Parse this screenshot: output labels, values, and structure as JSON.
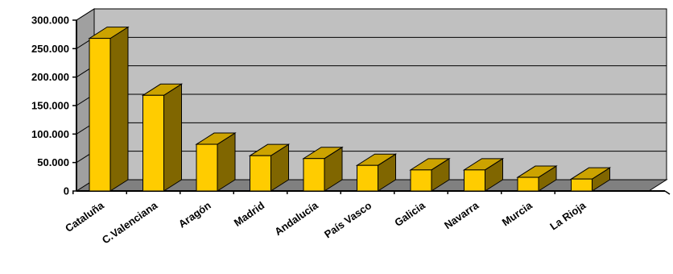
{
  "chart_data": {
    "type": "bar",
    "title": "",
    "xlabel": "",
    "ylabel": "",
    "categories": [
      "Cataluña",
      "C.Valenciana",
      "Aragón",
      "Madrid",
      "Andalucía",
      "País Vasco",
      "Galicia",
      "Navarra",
      "Murcia",
      "La Rioja"
    ],
    "values": [
      268000,
      168000,
      82000,
      62000,
      57000,
      45000,
      37000,
      37000,
      24000,
      21000
    ],
    "ylim": [
      0,
      300000
    ],
    "yticks": [
      0,
      50000,
      100000,
      150000,
      200000,
      250000,
      300000
    ],
    "ytick_labels": [
      "0",
      "50.000",
      "100.000",
      "150.000",
      "200.000",
      "250.000",
      "300.000"
    ],
    "grid": true,
    "legend": "none",
    "colors": {
      "bar_front": "#FFCC00",
      "bar_side": "#806600",
      "bar_top": "#CCA300",
      "back_wall": "#C0C0C0",
      "side_wall": "#A0A0A0",
      "floor": "#808080",
      "gridline": "#000000"
    }
  }
}
